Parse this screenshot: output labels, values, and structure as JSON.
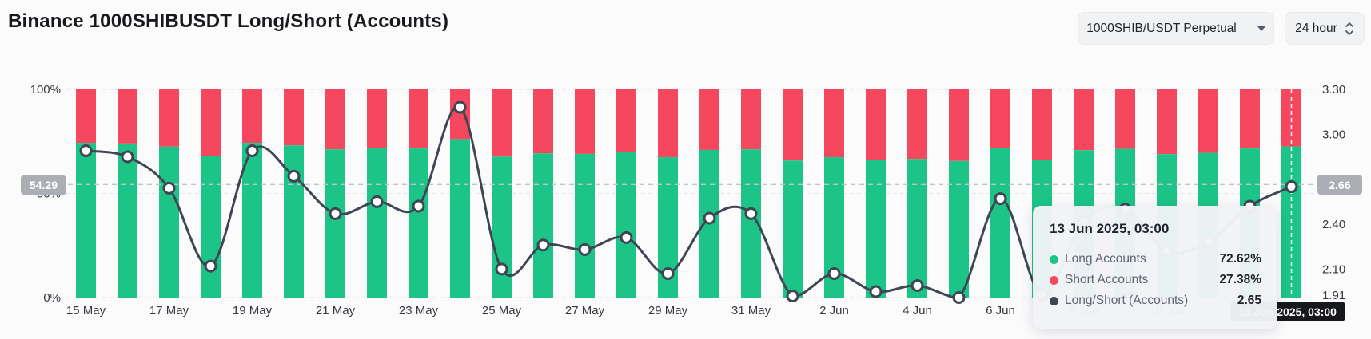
{
  "header": {
    "title": "Binance 1000SHIBUSDT Long/Short (Accounts)",
    "pair_select": {
      "value": "1000SHIB/USDT Perpetual",
      "icon": "chevron-down-icon"
    },
    "interval_select": {
      "value": "24 hour",
      "icon": "up-down-arrows-icon"
    }
  },
  "chart_data": {
    "type": "bar",
    "subtype": "stacked-bars-with-line",
    "categories": [
      "15 May",
      "16 May",
      "17 May",
      "18 May",
      "19 May",
      "20 May",
      "21 May",
      "22 May",
      "23 May",
      "24 May",
      "25 May",
      "26 May",
      "27 May",
      "28 May",
      "29 May",
      "30 May",
      "31 May",
      "1 Jun",
      "2 Jun",
      "3 Jun",
      "4 Jun",
      "5 Jun",
      "6 Jun",
      "7 Jun",
      "8 Jun",
      "9 Jun",
      "10 Jun",
      "11 Jun",
      "12 Jun",
      "13 Jun"
    ],
    "x_tick_every": 2,
    "series": [
      {
        "name": "Long Accounts",
        "type": "bar",
        "color": "#1cc487",
        "values": [
          74.3,
          74.0,
          72.5,
          67.9,
          74.3,
          73.1,
          71.2,
          71.8,
          71.6,
          76.1,
          67.7,
          69.3,
          69.0,
          69.8,
          67.4,
          70.9,
          71.2,
          65.8,
          67.4,
          66.1,
          66.6,
          65.6,
          72.0,
          65.9,
          70.8,
          71.4,
          68.9,
          69.5,
          71.6,
          72.62
        ]
      },
      {
        "name": "Short Accounts",
        "type": "bar",
        "color": "#f5475d",
        "values": [
          25.7,
          26.0,
          27.5,
          32.1,
          25.7,
          26.9,
          28.8,
          28.2,
          28.4,
          23.9,
          32.3,
          30.7,
          31.0,
          30.2,
          32.6,
          29.1,
          28.8,
          34.2,
          32.6,
          33.9,
          33.4,
          34.4,
          28.0,
          34.1,
          29.2,
          28.6,
          31.1,
          30.5,
          28.4,
          27.38
        ]
      },
      {
        "name": "Long/Short (Accounts)",
        "type": "line",
        "color": "#3f4553",
        "values": [
          2.89,
          2.85,
          2.64,
          2.12,
          2.89,
          2.72,
          2.47,
          2.55,
          2.52,
          3.18,
          2.1,
          2.26,
          2.23,
          2.31,
          2.07,
          2.44,
          2.47,
          1.92,
          2.07,
          1.95,
          1.99,
          1.91,
          2.57,
          1.93,
          2.42,
          2.5,
          2.22,
          2.28,
          2.52,
          2.65
        ]
      }
    ],
    "left_axis": {
      "ticks": [
        {
          "label": "100%",
          "pct": 100
        },
        {
          "label": "50%",
          "pct": 50
        },
        {
          "label": "0%",
          "pct": 0
        }
      ],
      "range": [
        0,
        100
      ],
      "gridlines": [
        100,
        50,
        0
      ]
    },
    "right_axis": {
      "ticks": [
        {
          "label": "3.30",
          "value": 3.3
        },
        {
          "label": "3.00",
          "value": 3.0
        },
        {
          "label": "2.70",
          "value": 2.7
        },
        {
          "label": "2.40",
          "value": 2.4
        },
        {
          "label": "2.10",
          "value": 2.1
        },
        {
          "label": "1.91",
          "value": 1.91
        }
      ],
      "range": [
        1.91,
        3.3
      ]
    },
    "legend_position": "none",
    "grid": true
  },
  "crosshair": {
    "left_value": "54.29",
    "right_value": "2.66",
    "x_label": "13 Jun 2025, 03:00",
    "hover_index": 29
  },
  "tooltip": {
    "title": "13 Jun 2025, 03:00",
    "rows": [
      {
        "label": "Long Accounts",
        "value": "72.62%",
        "color": "#1cc487"
      },
      {
        "label": "Short Accounts",
        "value": "27.38%",
        "color": "#f5475d"
      },
      {
        "label": "Long/Short (Accounts)",
        "value": "2.65",
        "color": "#3f4553"
      }
    ]
  }
}
